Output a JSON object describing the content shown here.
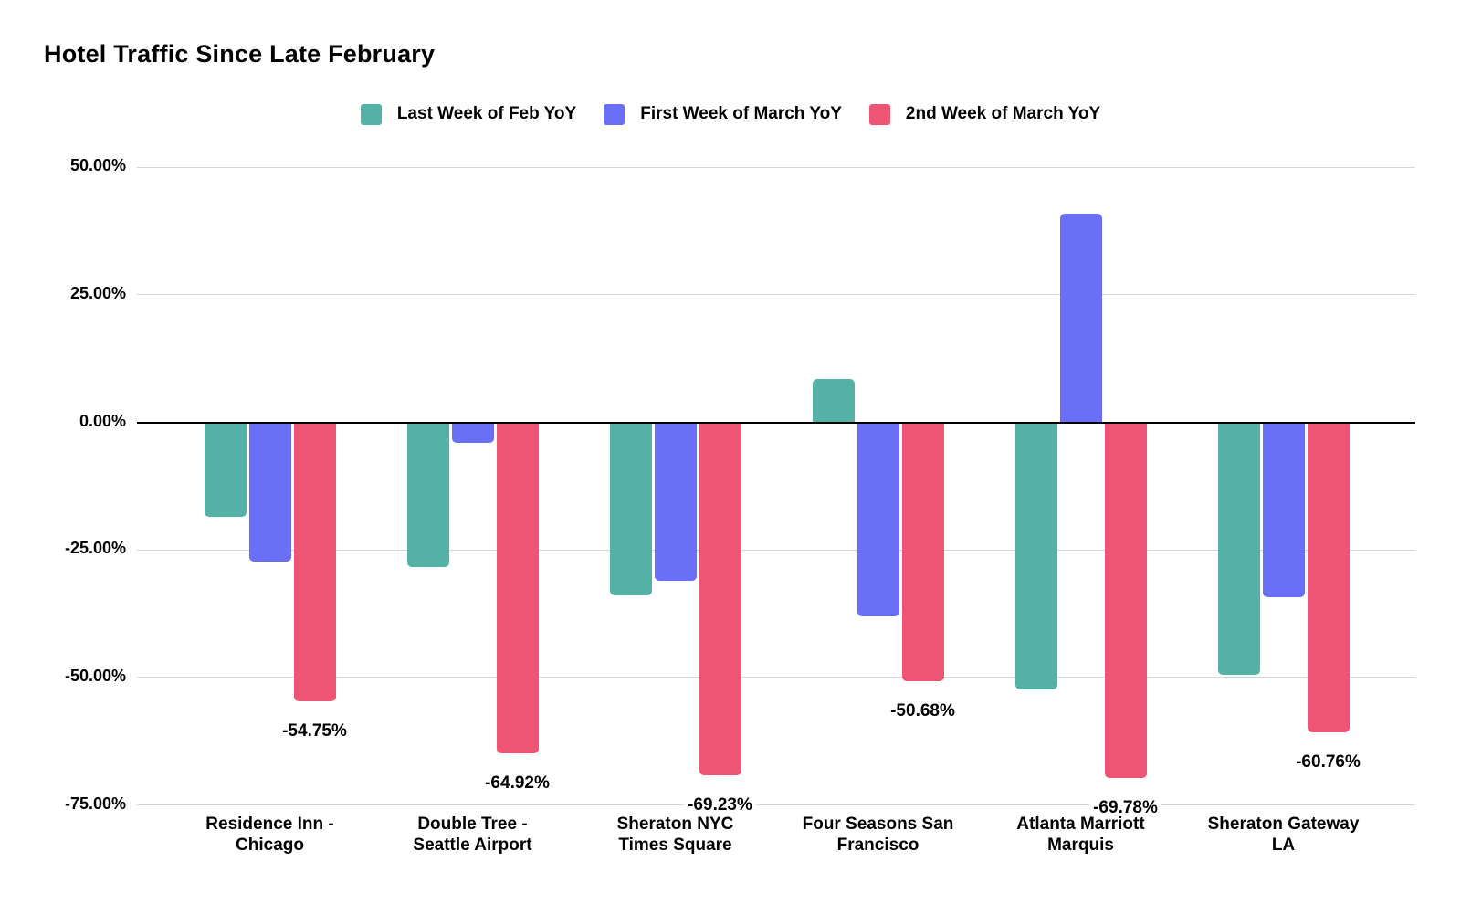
{
  "title": "Hotel Traffic Since Late February",
  "chart_data": {
    "type": "bar",
    "title": "Hotel Traffic Since Late February",
    "categories": [
      "Residence Inn - Chicago",
      "Double Tree - Seattle Airport",
      "Sheraton NYC Times Square",
      "Four Seasons San Francisco",
      "Atlanta Marriott Marquis",
      "Sheraton Gateway LA"
    ],
    "category_label_lines": [
      [
        "Residence Inn -",
        "Chicago"
      ],
      [
        "Double Tree -",
        "Seattle Airport"
      ],
      [
        "Sheraton NYC",
        "Times Square"
      ],
      [
        "Four Seasons San",
        "Francisco"
      ],
      [
        "Atlanta Marriott",
        "Marquis"
      ],
      [
        "Sheraton Gateway",
        "LA"
      ]
    ],
    "series": [
      {
        "name": "Last Week of Feb YoY",
        "color": "#54B1A5",
        "values": [
          -18.5,
          -28.4,
          -33.9,
          8.5,
          -52.4,
          -49.4
        ]
      },
      {
        "name": "First Week of March YoY",
        "color": "#6A6FF7",
        "values": [
          -27.3,
          -4.1,
          -31.1,
          -38.1,
          40.9,
          -34.2
        ]
      },
      {
        "name": "2nd Week of March YoY",
        "color": "#EE5473",
        "values": [
          -54.75,
          -64.92,
          -69.23,
          -50.68,
          -69.78,
          -60.76
        ],
        "data_labels": [
          "-54.75%",
          "-64.92%",
          "-69.23%",
          "-50.68%",
          "-69.78%",
          "-60.76%"
        ]
      }
    ],
    "y_axis": {
      "min": -75,
      "max": 50,
      "tick_interval": 25,
      "tick_values": [
        50,
        25,
        0,
        -25,
        -50,
        -75
      ],
      "tick_labels": [
        "50.00%",
        "25.00%",
        "0.00%",
        "-25.00%",
        "-50.00%",
        "-75.00%"
      ]
    },
    "grid": true,
    "legend_position": "top",
    "background_color": "#FFFFFF",
    "gridline_color": "#D5D5D5",
    "axis_line_color": "#000000",
    "text_color": "#000000"
  }
}
